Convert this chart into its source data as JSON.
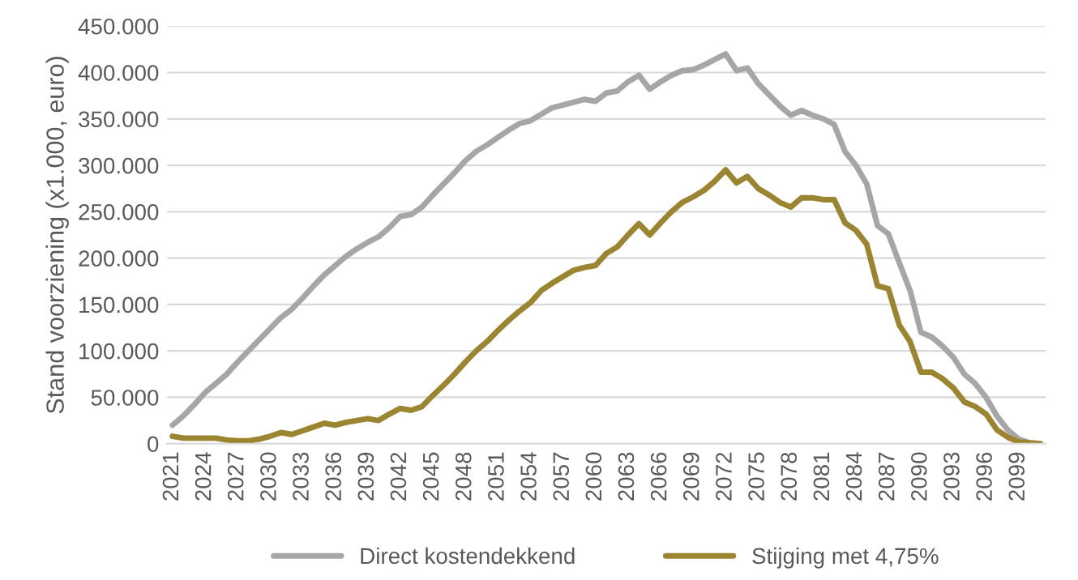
{
  "chart_data": {
    "type": "line",
    "ylabel": "Stand voorziening (x1.000, euro)",
    "categories": [
      "2021",
      null,
      null,
      "2024",
      null,
      null,
      "2027",
      null,
      null,
      "2030",
      null,
      null,
      "2033",
      null,
      null,
      "2036",
      null,
      null,
      "2039",
      null,
      null,
      "2042",
      null,
      null,
      "2045",
      null,
      null,
      "2048",
      null,
      null,
      "2051",
      null,
      null,
      "2054",
      null,
      null,
      "2057",
      null,
      null,
      "2060",
      null,
      null,
      "2063",
      null,
      null,
      "2066",
      null,
      null,
      "2069",
      null,
      null,
      "2072",
      null,
      null,
      "2075",
      null,
      null,
      "2078",
      null,
      null,
      "2081",
      null,
      null,
      "2084",
      null,
      null,
      "2087",
      null,
      null,
      "2090",
      null,
      null,
      "2093",
      null,
      null,
      "2096",
      null,
      null,
      "2099",
      null,
      null
    ],
    "series": [
      {
        "name": "Direct kostendekkend",
        "color": "#a6a6a6",
        "values": [
          20000,
          30000,
          42000,
          55000,
          65000,
          75000,
          88000,
          100000,
          112000,
          124000,
          136000,
          145000,
          157000,
          170000,
          182000,
          192000,
          202000,
          210000,
          217000,
          223000,
          233000,
          245000,
          247000,
          255000,
          268000,
          280000,
          292000,
          305000,
          315000,
          322000,
          330000,
          338000,
          345000,
          348000,
          355000,
          362000,
          365000,
          368000,
          371000,
          369000,
          378000,
          380000,
          390000,
          397000,
          382000,
          390000,
          397000,
          402000,
          403000,
          408000,
          414000,
          420000,
          402000,
          405000,
          388000,
          376000,
          364000,
          354000,
          359000,
          354000,
          350000,
          344000,
          315000,
          300000,
          280000,
          235000,
          226000,
          195000,
          165000,
          120000,
          115000,
          105000,
          93000,
          75000,
          65000,
          50000,
          30000,
          15000,
          5000,
          1000,
          0
        ]
      },
      {
        "name": "Stijging met 4,75%",
        "color": "#9c8530",
        "values": [
          8000,
          6000,
          6000,
          6000,
          6000,
          4000,
          3000,
          3000,
          5000,
          8000,
          12000,
          10000,
          14000,
          18000,
          22000,
          20000,
          23000,
          25000,
          27000,
          25000,
          32000,
          38000,
          36000,
          40000,
          52000,
          63000,
          75000,
          88000,
          100000,
          110000,
          122000,
          133000,
          143000,
          152000,
          165000,
          173000,
          180000,
          187000,
          190000,
          192000,
          205000,
          212000,
          225000,
          237000,
          225000,
          238000,
          250000,
          260000,
          266000,
          273000,
          283000,
          295000,
          281000,
          288000,
          275000,
          268000,
          260000,
          255000,
          265000,
          265000,
          263000,
          263000,
          238000,
          230000,
          215000,
          170000,
          167000,
          128000,
          110000,
          77000,
          77000,
          70000,
          60000,
          45000,
          40000,
          32000,
          15000,
          7000,
          2000,
          1000,
          0
        ]
      }
    ],
    "ylim": [
      0,
      450000
    ],
    "yticks": [
      0,
      {
        "value": 50000,
        "label": "50.000"
      },
      {
        "value": 100000,
        "label": "100.000"
      },
      {
        "value": 150000,
        "label": "150.000"
      },
      {
        "value": 200000,
        "label": "200.000"
      },
      {
        "value": 250000,
        "label": "250.000"
      },
      {
        "value": 300000,
        "label": "300.000"
      },
      {
        "value": 350000,
        "label": "350.000"
      },
      {
        "value": 400000,
        "label": "400.000"
      },
      {
        "value": 450000,
        "label": "450.000"
      }
    ],
    "grid": "y",
    "legend": "bottom",
    "marker": "none",
    "line_style": "solid"
  }
}
